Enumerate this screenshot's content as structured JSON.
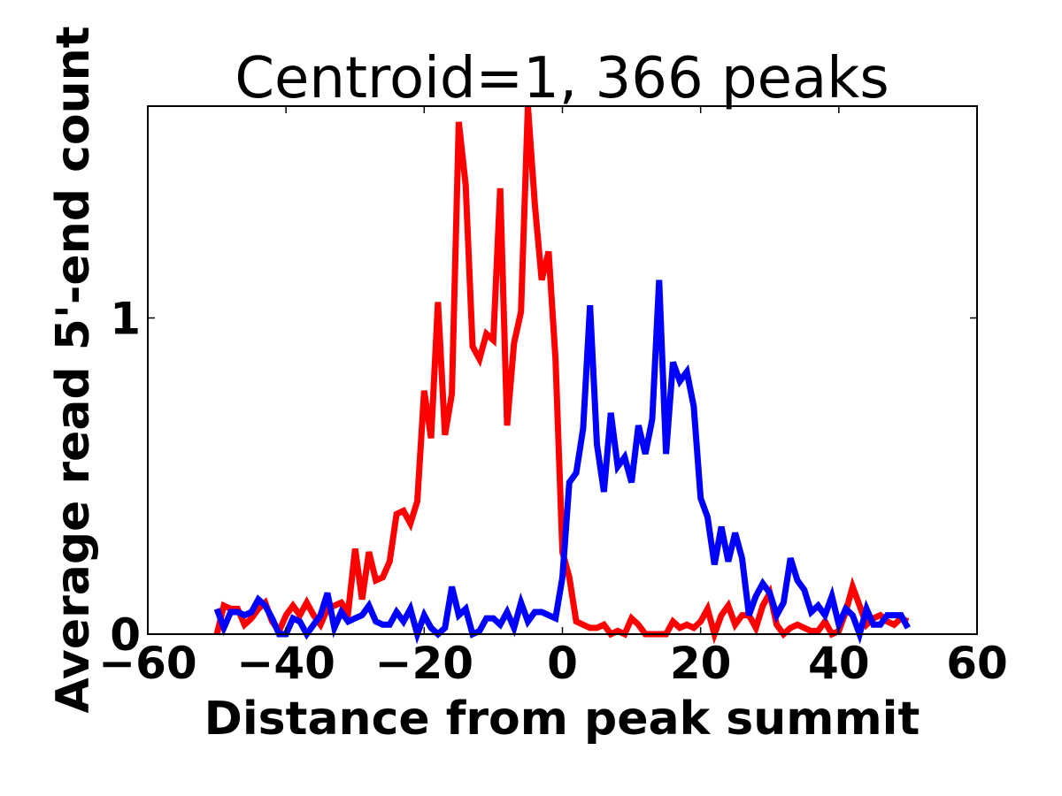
{
  "chart_data": {
    "type": "line",
    "title": "Centroid=1, 366 peaks",
    "xlabel": "Distance from peak summit",
    "ylabel": "Average read 5'-end count",
    "xlim": [
      -60,
      60
    ],
    "ylim": [
      0,
      1.67
    ],
    "xticks": [
      -60,
      -40,
      -20,
      0,
      20,
      40,
      60
    ],
    "xtick_labels": [
      "−60",
      "−40",
      "−20",
      "0",
      "20",
      "40",
      "60"
    ],
    "yticks": [
      0,
      1
    ],
    "ytick_labels": [
      "0",
      "1"
    ],
    "grid": false,
    "legend": null,
    "x": [
      -50,
      -49,
      -48,
      -47,
      -46,
      -45,
      -44,
      -43,
      -42,
      -41,
      -40,
      -39,
      -38,
      -37,
      -36,
      -35,
      -34,
      -33,
      -32,
      -31,
      -30,
      -29,
      -28,
      -27,
      -26,
      -25,
      -24,
      -23,
      -22,
      -21,
      -20,
      -19,
      -18,
      -17,
      -16,
      -15,
      -14,
      -13,
      -12,
      -11,
      -10,
      -9,
      -8,
      -7,
      -6,
      -5,
      -4,
      -3,
      -2,
      -1,
      0,
      1,
      2,
      3,
      4,
      5,
      6,
      7,
      8,
      9,
      10,
      11,
      12,
      13,
      14,
      15,
      16,
      17,
      18,
      19,
      20,
      21,
      22,
      23,
      24,
      25,
      26,
      27,
      28,
      29,
      30,
      31,
      32,
      33,
      34,
      35,
      36,
      37,
      38,
      39,
      40,
      41,
      42,
      43,
      44,
      45,
      46,
      47,
      48,
      49,
      50
    ],
    "series": [
      {
        "color": "#ff0000",
        "values": [
          0.0,
          0.09,
          0.08,
          0.08,
          0.03,
          0.05,
          0.08,
          0.1,
          0.04,
          0.01,
          0.06,
          0.09,
          0.06,
          0.1,
          0.06,
          0.03,
          0.08,
          0.09,
          0.1,
          0.07,
          0.27,
          0.11,
          0.26,
          0.17,
          0.18,
          0.23,
          0.38,
          0.39,
          0.35,
          0.42,
          0.77,
          0.62,
          1.05,
          0.63,
          0.76,
          1.62,
          1.42,
          0.91,
          0.87,
          0.95,
          0.93,
          1.41,
          0.66,
          0.92,
          1.02,
          1.67,
          1.36,
          1.12,
          1.21,
          0.87,
          0.26,
          0.18,
          0.04,
          0.03,
          0.02,
          0.02,
          0.03,
          0.0,
          0.01,
          0.0,
          0.05,
          0.03,
          0.0,
          0.0,
          0.0,
          0.0,
          0.04,
          0.02,
          0.03,
          0.02,
          0.04,
          0.08,
          0.0,
          0.06,
          0.09,
          0.03,
          0.06,
          0.06,
          0.02,
          0.09,
          0.13,
          0.03,
          0.0,
          0.02,
          0.03,
          0.02,
          0.01,
          0.01,
          0.04,
          0.0,
          0.01,
          0.07,
          0.15,
          0.09,
          0.03,
          0.05,
          0.06,
          0.04,
          0.03,
          0.05,
          0.04
        ]
      },
      {
        "color": "#0000ff",
        "values": [
          0.08,
          0.02,
          0.07,
          0.07,
          0.06,
          0.07,
          0.11,
          0.09,
          0.05,
          0.0,
          0.0,
          0.05,
          0.04,
          0.0,
          0.03,
          0.06,
          0.13,
          0.02,
          0.07,
          0.04,
          0.05,
          0.06,
          0.09,
          0.04,
          0.03,
          0.03,
          0.07,
          0.04,
          0.08,
          0.0,
          0.06,
          0.02,
          0.0,
          0.02,
          0.15,
          0.06,
          0.08,
          0.0,
          0.01,
          0.05,
          0.05,
          0.03,
          0.07,
          0.02,
          0.1,
          0.04,
          0.07,
          0.07,
          0.06,
          0.05,
          0.18,
          0.48,
          0.51,
          0.65,
          1.04,
          0.6,
          0.45,
          0.7,
          0.53,
          0.56,
          0.48,
          0.66,
          0.57,
          0.68,
          1.12,
          0.57,
          0.86,
          0.8,
          0.83,
          0.72,
          0.43,
          0.37,
          0.22,
          0.34,
          0.23,
          0.32,
          0.24,
          0.06,
          0.12,
          0.16,
          0.13,
          0.06,
          0.1,
          0.24,
          0.17,
          0.14,
          0.07,
          0.09,
          0.06,
          0.12,
          0.03,
          0.08,
          0.06,
          0.0,
          0.08,
          0.03,
          0.03,
          0.06,
          0.06,
          0.06,
          0.02
        ]
      }
    ]
  }
}
